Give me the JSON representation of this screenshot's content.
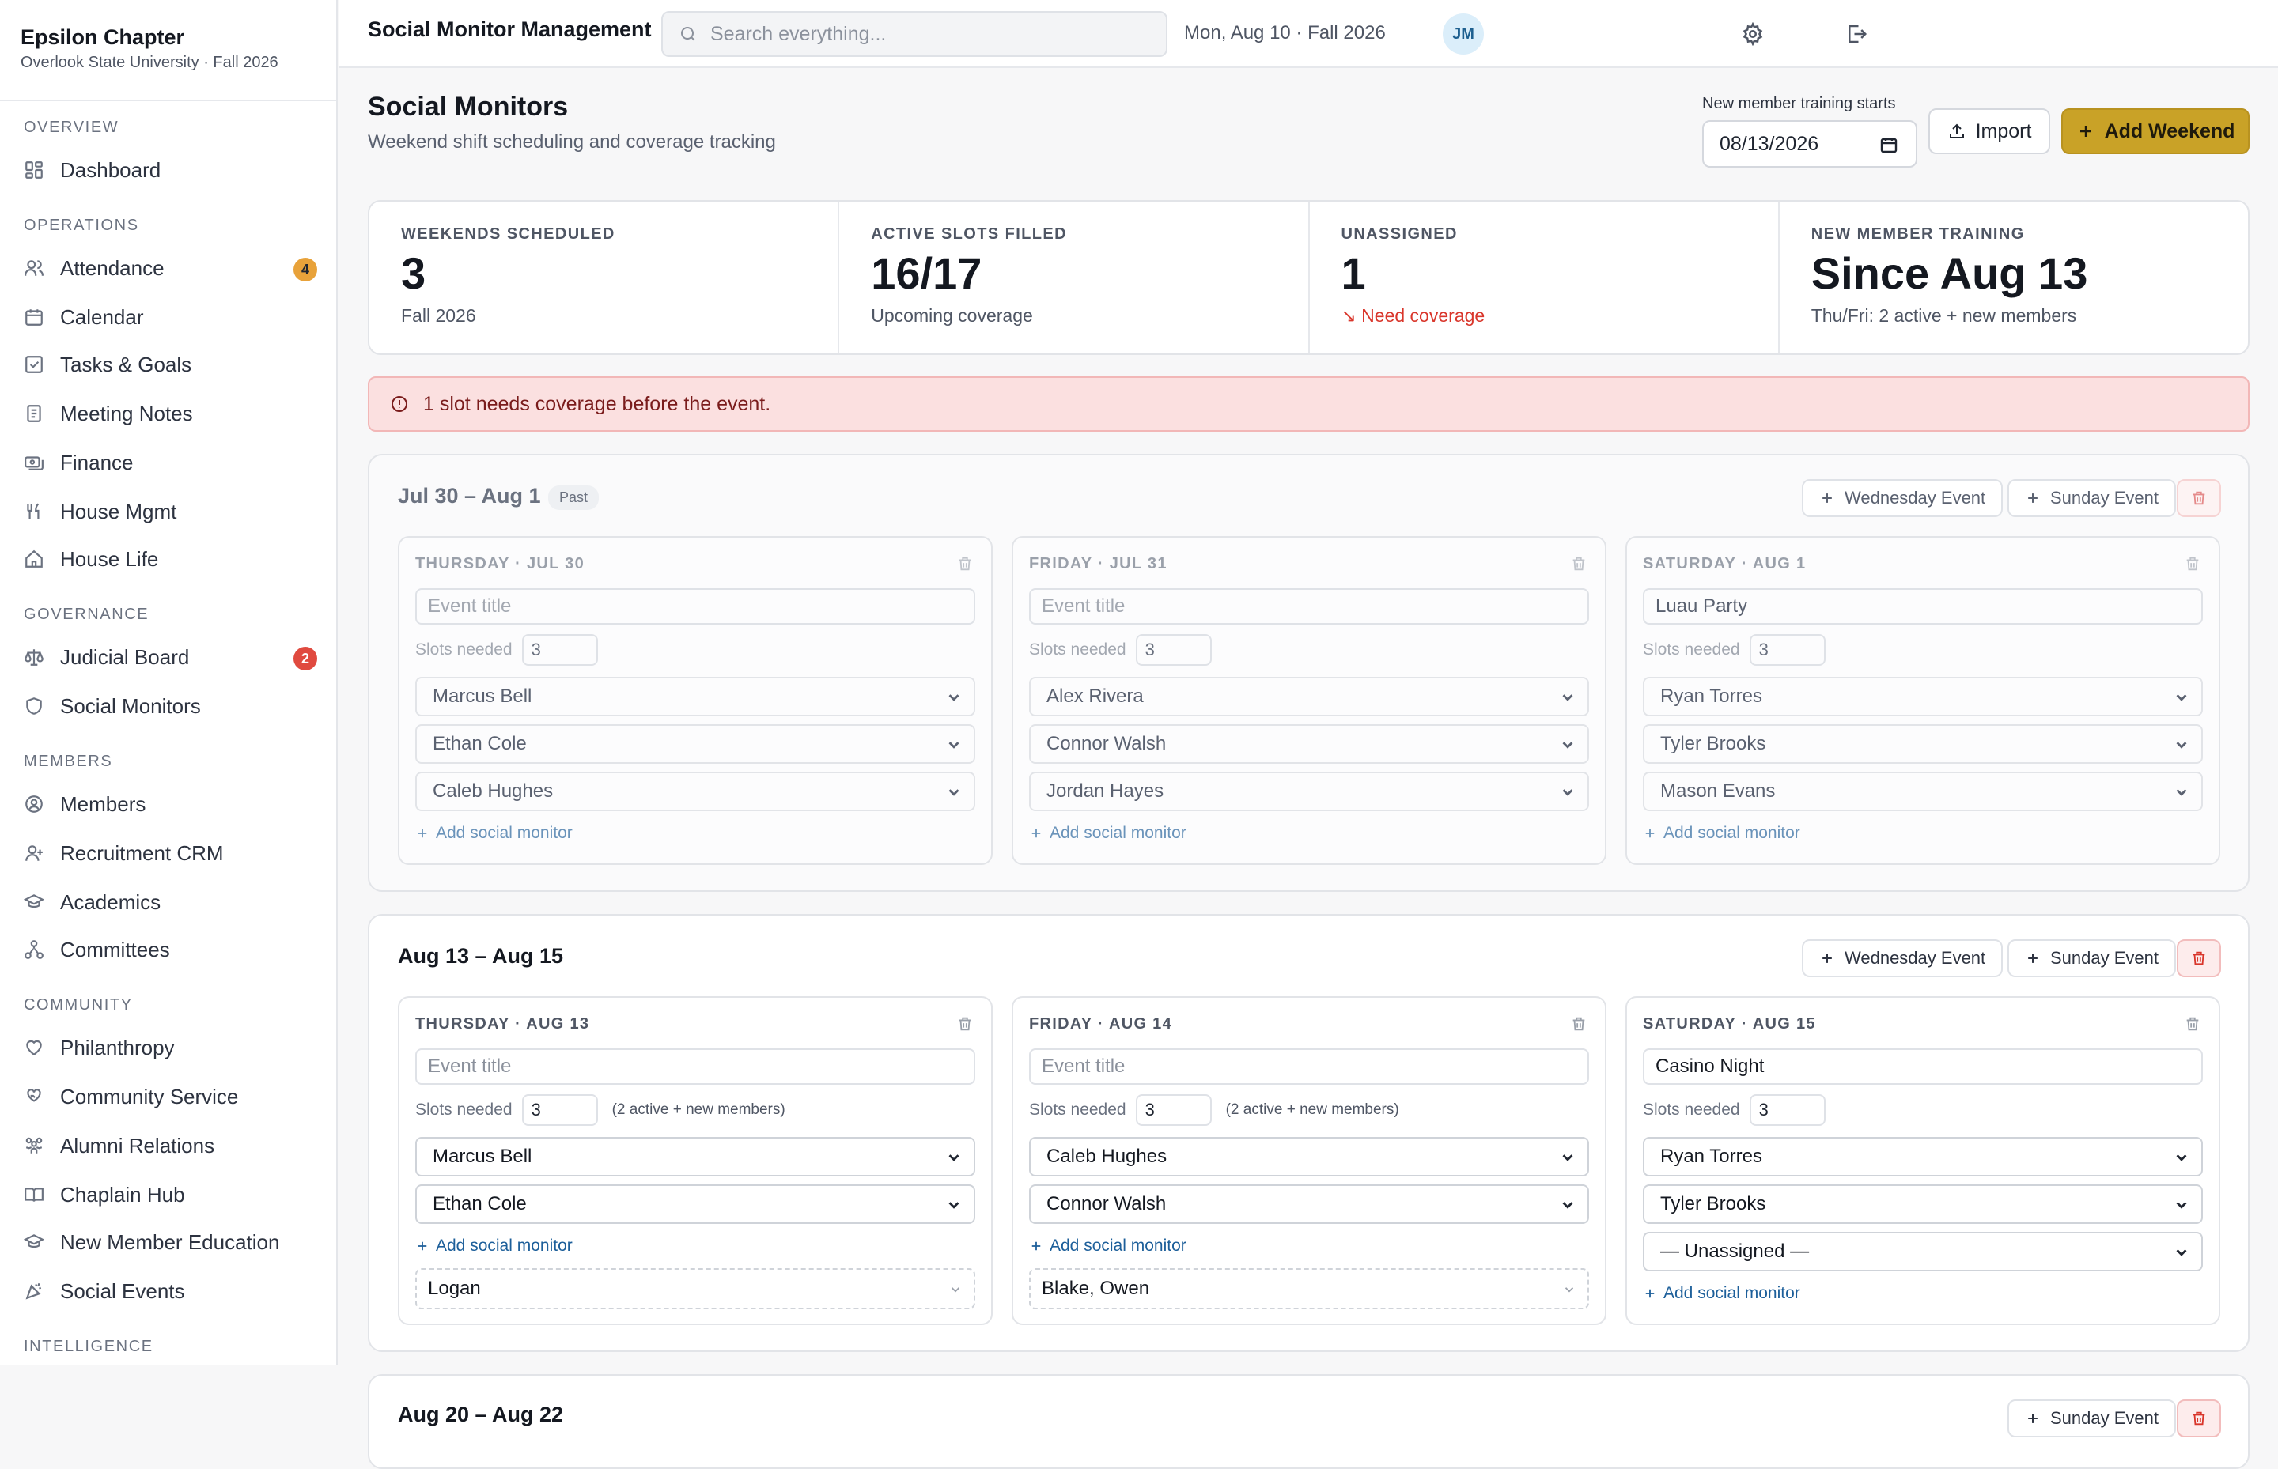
{
  "sidebar": {
    "brand_name": "Epsilon Chapter",
    "brand_sub": "Overlook State University · Fall 2026",
    "sections": {
      "overview": "OVERVIEW",
      "operations": "OPERATIONS",
      "governance": "GOVERNANCE",
      "members": "MEMBERS",
      "community": "COMMUNITY",
      "intelligence": "INTELLIGENCE"
    },
    "items": {
      "dashboard": "Dashboard",
      "attendance": "Attendance",
      "attendance_badge": "4",
      "calendar": "Calendar",
      "tasks": "Tasks & Goals",
      "meeting_notes": "Meeting Notes",
      "finance": "Finance",
      "house_mgmt": "House Mgmt",
      "house_life": "House Life",
      "judicial": "Judicial Board",
      "judicial_badge": "2",
      "social_monitors": "Social Monitors",
      "members": "Members",
      "recruitment": "Recruitment CRM",
      "academics": "Academics",
      "committees": "Committees",
      "philanthropy": "Philanthropy",
      "community_service": "Community Service",
      "alumni": "Alumni Relations",
      "chaplain": "Chaplain Hub",
      "nme": "New Member Education",
      "social_events": "Social Events"
    },
    "badge_colors": {
      "attendance": "#e8a23a",
      "judicial": "#e04a3f"
    }
  },
  "topbar": {
    "title": "Social Monitor Management",
    "search_placeholder": "Search everything...",
    "date": "Mon, Aug 10 · Fall 2026",
    "avatar": "JM"
  },
  "header": {
    "title": "Social Monitors",
    "subtitle": "Weekend shift scheduling and coverage tracking",
    "training_label": "New member training starts",
    "training_date": "08/13/2026",
    "import_label": "Import",
    "add_weekend_label": "Add Weekend"
  },
  "stats": [
    {
      "label": "WEEKENDS SCHEDULED",
      "value": "3",
      "note": "Fall 2026"
    },
    {
      "label": "ACTIVE SLOTS FILLED",
      "value": "16/17",
      "note": "Upcoming coverage"
    },
    {
      "label": "UNASSIGNED",
      "value": "1",
      "note": "↘ Need coverage"
    },
    {
      "label": "NEW MEMBER TRAINING",
      "value": "Since Aug 13",
      "note": "Thu/Fri: 2 active + new members"
    }
  ],
  "alert": "1 slot needs coverage before the event.",
  "common": {
    "wednesday_event": "Wednesday Event",
    "sunday_event": "Sunday Event",
    "slots_label": "Slots needed",
    "add_monitor": "Add social monitor",
    "event_placeholder": "Event title",
    "past": "Past"
  },
  "weekends": [
    {
      "range": "Jul 30 – Aug 1",
      "days": [
        {
          "head": "THURSDAY · JUL 30",
          "event": "",
          "slots": "3",
          "monitors": [
            "Marcus Bell",
            "Ethan Cole",
            "Caleb Hughes"
          ]
        },
        {
          "head": "FRIDAY · JUL 31",
          "event": "",
          "slots": "3",
          "monitors": [
            "Alex Rivera",
            "Connor Walsh",
            "Jordan Hayes"
          ]
        },
        {
          "head": "SATURDAY · AUG 1",
          "event": "Luau Party",
          "slots": "3",
          "monitors": [
            "Ryan Torres",
            "Tyler Brooks",
            "Mason Evans"
          ]
        }
      ]
    },
    {
      "range": "Aug 13 – Aug 15",
      "days": [
        {
          "head": "THURSDAY · AUG 13",
          "event": "",
          "slots": "3",
          "slots_note": "(2 active + new members)",
          "monitors": [
            "Marcus Bell",
            "Ethan Cole"
          ],
          "new_members": "Logan"
        },
        {
          "head": "FRIDAY · AUG 14",
          "event": "",
          "slots": "3",
          "slots_note": "(2 active + new members)",
          "monitors": [
            "Caleb Hughes",
            "Connor Walsh"
          ],
          "new_members": "Blake, Owen"
        },
        {
          "head": "SATURDAY · AUG 15",
          "event": "Casino Night",
          "slots": "3",
          "monitors": [
            "Ryan Torres",
            "Tyler Brooks",
            "— Unassigned —"
          ]
        }
      ]
    },
    {
      "range": "Aug 20 – Aug 22",
      "days": []
    }
  ]
}
